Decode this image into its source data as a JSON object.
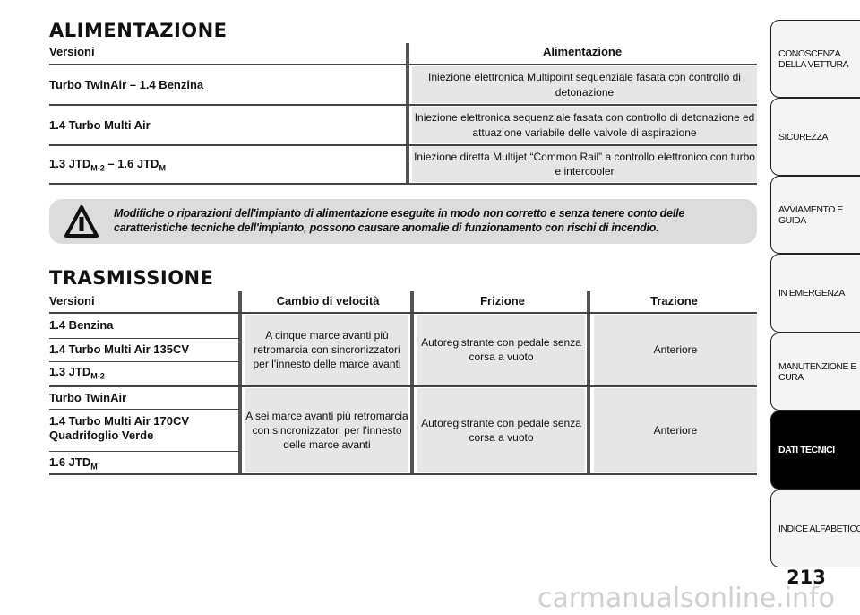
{
  "alimentazione": {
    "title": "ALIMENTAZIONE",
    "col_versioni": "Versioni",
    "col_alimentazione": "Alimentazione",
    "rows": [
      {
        "version": "Turbo TwinAir – 1.4 Benzina",
        "value": "Iniezione elettronica Multipoint sequenziale fasata con controllo di detonazione"
      },
      {
        "version": "1.4 Turbo Multi Air",
        "value": "Iniezione elettronica sequenziale fasata con controllo di detonazione ed attuazione variabile delle valvole di aspirazione"
      },
      {
        "version_a": "1.3 JTD",
        "sub_a": "M-2",
        "version_b": " – 1.6 JTD",
        "sub_b": "M",
        "value": "Iniezione diretta Multijet “Common Rail” a controllo elettronico con turbo e intercooler"
      }
    ]
  },
  "warning": {
    "icon": "warning-triangle-icon",
    "text": "Modifiche o riparazioni dell'impianto di alimentazione eseguite in modo non corretto e senza tenere conto delle caratteristiche tecniche dell'impianto, possono causare anomalie di funzionamento con rischi di incendio."
  },
  "trasmissione": {
    "title": "TRASMISSIONE",
    "headers": [
      "Versioni",
      "Cambio di velocità",
      "Frizione",
      "Trazione"
    ],
    "versions": [
      "1.4 Benzina",
      "1.4 Turbo Multi Air 135CV",
      "1.3 JTD",
      "Turbo TwinAir",
      "1.4 Turbo Multi Air 170CV Quadrifoglio Verde",
      "1.6 JTD"
    ],
    "subs": {
      "v3": "M-2",
      "v6": "M"
    },
    "groups": [
      {
        "cambio": "A cinque marce avanti più retromarcia con sincronizzatori per l'innesto delle marce avanti",
        "frizione": "Autoregistrante con pedale senza corsa a vuoto",
        "trazione": "Anteriore"
      },
      {
        "cambio": "A sei marce avanti più retromarcia con sincronizzatori per l'innesto delle marce avanti",
        "frizione": "Autoregistrante con pedale senza corsa a vuoto",
        "trazione": "Anteriore"
      }
    ]
  },
  "tabs": [
    "CONOSCENZA DELLA VETTURA",
    "SICUREZZA",
    "AVVIAMENTO E GUIDA",
    "IN EMERGENZA",
    "MANUTENZIONE E CURA",
    "DATI TECNICI",
    "INDICE ALFABETICO"
  ],
  "active_tab": "DATI TECNICI",
  "page_number": "213",
  "watermark": "carmanualsonline.info"
}
